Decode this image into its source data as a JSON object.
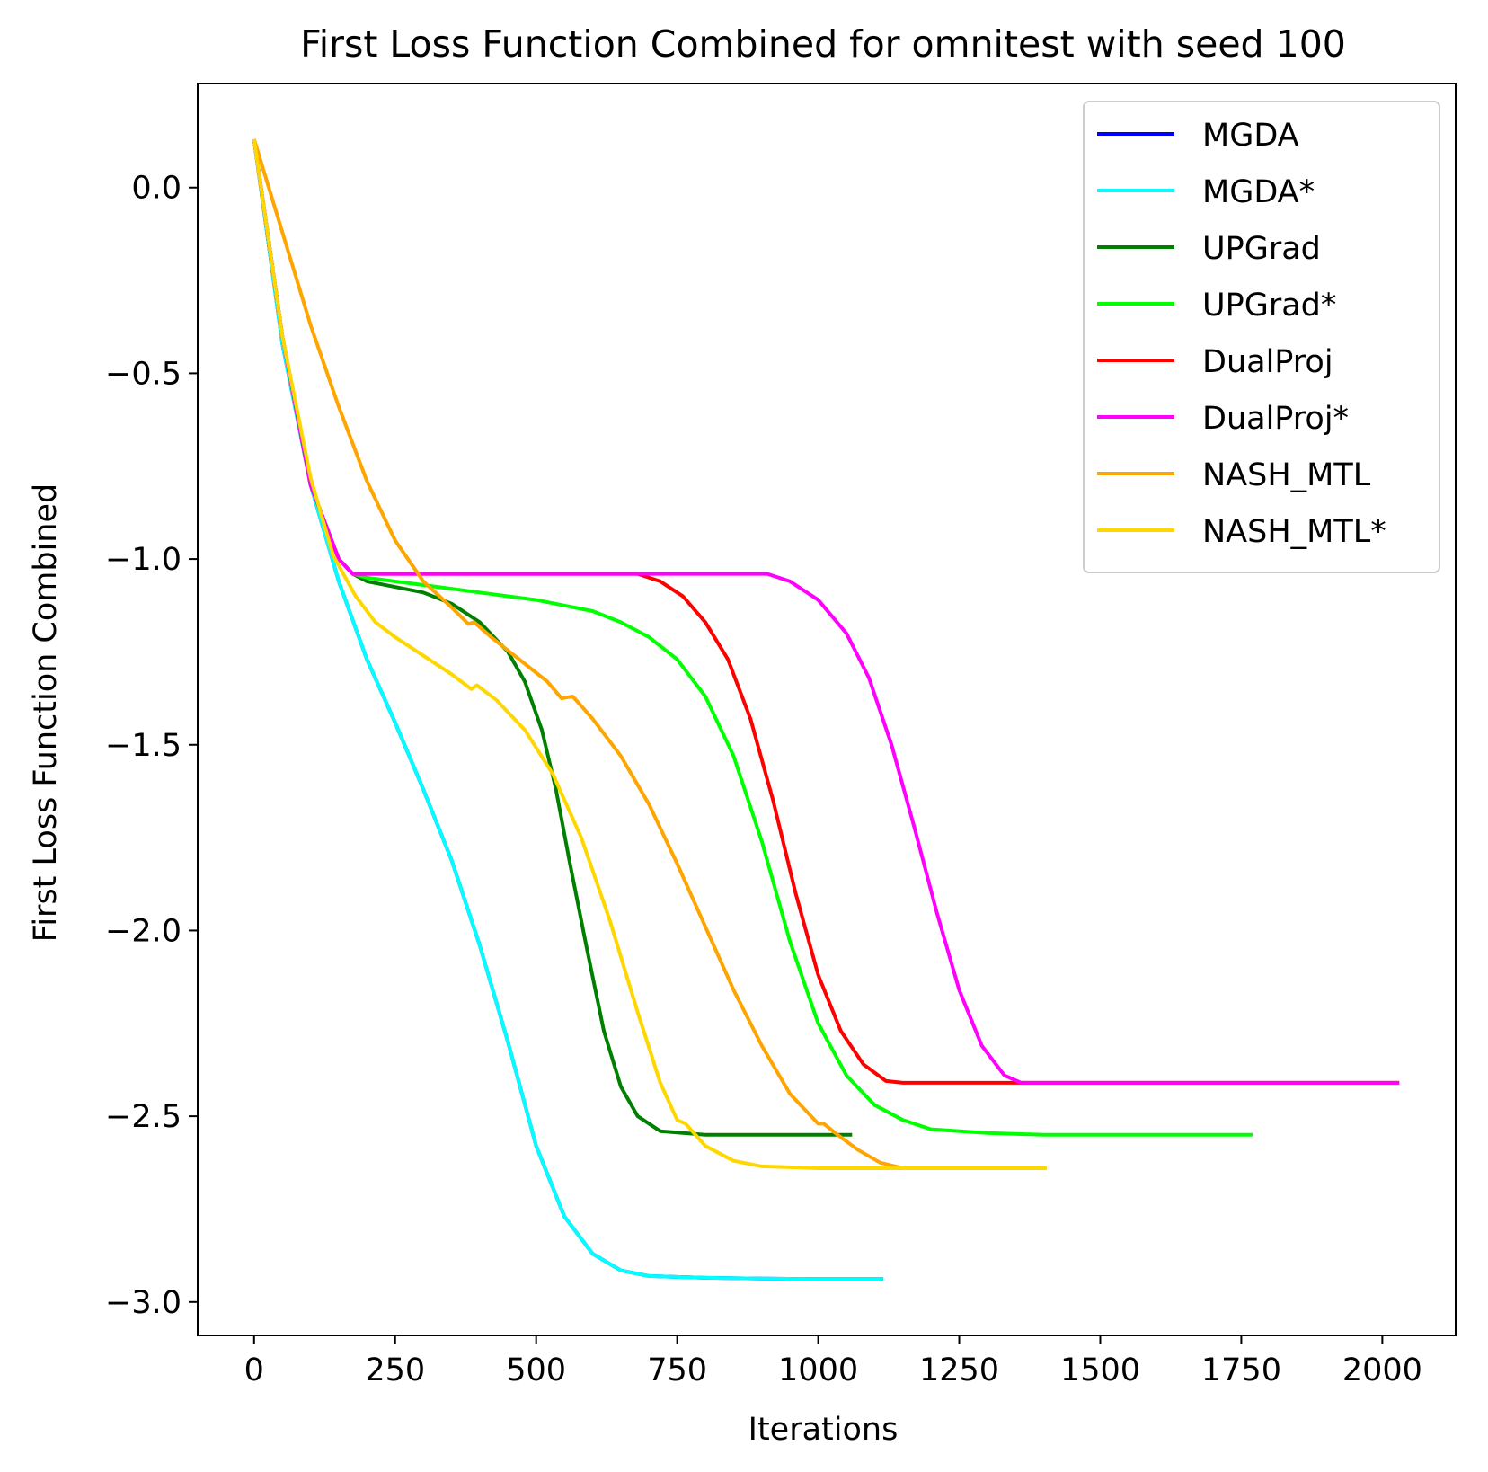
{
  "chart_data": {
    "type": "line",
    "title": "First Loss Function Combined for omnitest with seed 100",
    "xlabel": "Iterations",
    "ylabel": "First Loss Function Combined",
    "xlim": [
      -100,
      2130
    ],
    "ylim": [
      -3.09,
      0.28
    ],
    "xticks": [
      0,
      250,
      500,
      750,
      1000,
      1250,
      1500,
      1750,
      2000
    ],
    "xtick_labels": [
      "0",
      "250",
      "500",
      "750",
      "1000",
      "1250",
      "1500",
      "1750",
      "2000"
    ],
    "yticks": [
      0.0,
      -0.5,
      -1.0,
      -1.5,
      -2.0,
      -2.5,
      -3.0
    ],
    "ytick_labels": [
      "0.0",
      "−0.5",
      "−1.0",
      "−1.5",
      "−2.0",
      "−2.5",
      "−3.0"
    ],
    "grid": false,
    "legend_position": "top-right",
    "series": [
      {
        "name": "MGDA",
        "color": "#0000ff",
        "points": [
          [
            0,
            0.13
          ],
          [
            50,
            -0.42
          ],
          [
            100,
            -0.8
          ],
          [
            150,
            -1.06
          ],
          [
            200,
            -1.27
          ],
          [
            250,
            -1.44
          ],
          [
            300,
            -1.62
          ],
          [
            350,
            -1.81
          ],
          [
            400,
            -2.04
          ],
          [
            450,
            -2.3
          ],
          [
            500,
            -2.58
          ],
          [
            550,
            -2.77
          ],
          [
            600,
            -2.87
          ],
          [
            650,
            -2.915
          ],
          [
            700,
            -2.93
          ],
          [
            800,
            -2.935
          ],
          [
            900,
            -2.937
          ],
          [
            1000,
            -2.938
          ],
          [
            1115,
            -2.938
          ]
        ]
      },
      {
        "name": "MGDA*",
        "color": "#00ffff",
        "points": [
          [
            0,
            0.13
          ],
          [
            50,
            -0.42
          ],
          [
            100,
            -0.8
          ],
          [
            150,
            -1.06
          ],
          [
            200,
            -1.27
          ],
          [
            250,
            -1.44
          ],
          [
            300,
            -1.62
          ],
          [
            350,
            -1.81
          ],
          [
            400,
            -2.04
          ],
          [
            450,
            -2.3
          ],
          [
            500,
            -2.58
          ],
          [
            550,
            -2.77
          ],
          [
            600,
            -2.87
          ],
          [
            650,
            -2.915
          ],
          [
            700,
            -2.93
          ],
          [
            800,
            -2.935
          ],
          [
            900,
            -2.937
          ],
          [
            1000,
            -2.938
          ],
          [
            1115,
            -2.938
          ]
        ]
      },
      {
        "name": "UPGrad",
        "color": "#008000",
        "points": [
          [
            0,
            0.13
          ],
          [
            50,
            -0.4
          ],
          [
            100,
            -0.8
          ],
          [
            150,
            -1.0
          ],
          [
            175,
            -1.04
          ],
          [
            200,
            -1.06
          ],
          [
            300,
            -1.09
          ],
          [
            350,
            -1.12
          ],
          [
            400,
            -1.17
          ],
          [
            450,
            -1.25
          ],
          [
            480,
            -1.33
          ],
          [
            510,
            -1.46
          ],
          [
            535,
            -1.62
          ],
          [
            560,
            -1.82
          ],
          [
            590,
            -2.05
          ],
          [
            620,
            -2.27
          ],
          [
            650,
            -2.42
          ],
          [
            680,
            -2.5
          ],
          [
            720,
            -2.54
          ],
          [
            800,
            -2.55
          ],
          [
            900,
            -2.55
          ],
          [
            1060,
            -2.55
          ]
        ]
      },
      {
        "name": "UPGrad*",
        "color": "#00ff00",
        "points": [
          [
            0,
            0.13
          ],
          [
            50,
            -0.4
          ],
          [
            100,
            -0.8
          ],
          [
            150,
            -1.0
          ],
          [
            175,
            -1.04
          ],
          [
            200,
            -1.05
          ],
          [
            300,
            -1.07
          ],
          [
            400,
            -1.09
          ],
          [
            500,
            -1.11
          ],
          [
            600,
            -1.14
          ],
          [
            650,
            -1.17
          ],
          [
            700,
            -1.21
          ],
          [
            750,
            -1.27
          ],
          [
            800,
            -1.37
          ],
          [
            850,
            -1.53
          ],
          [
            900,
            -1.76
          ],
          [
            950,
            -2.03
          ],
          [
            1000,
            -2.25
          ],
          [
            1050,
            -2.39
          ],
          [
            1100,
            -2.47
          ],
          [
            1150,
            -2.51
          ],
          [
            1200,
            -2.535
          ],
          [
            1300,
            -2.545
          ],
          [
            1400,
            -2.55
          ],
          [
            1600,
            -2.55
          ],
          [
            1770,
            -2.55
          ]
        ]
      },
      {
        "name": "DualProj",
        "color": "#ff0000",
        "points": [
          [
            0,
            0.13
          ],
          [
            50,
            -0.4
          ],
          [
            100,
            -0.8
          ],
          [
            150,
            -1.0
          ],
          [
            175,
            -1.04
          ],
          [
            200,
            -1.04
          ],
          [
            400,
            -1.04
          ],
          [
            600,
            -1.04
          ],
          [
            680,
            -1.04
          ],
          [
            720,
            -1.06
          ],
          [
            760,
            -1.1
          ],
          [
            800,
            -1.17
          ],
          [
            840,
            -1.27
          ],
          [
            880,
            -1.43
          ],
          [
            920,
            -1.65
          ],
          [
            960,
            -1.9
          ],
          [
            1000,
            -2.12
          ],
          [
            1040,
            -2.27
          ],
          [
            1080,
            -2.36
          ],
          [
            1120,
            -2.405
          ],
          [
            1150,
            -2.41
          ],
          [
            1300,
            -2.41
          ],
          [
            1500,
            -2.41
          ],
          [
            1700,
            -2.41
          ],
          [
            2030,
            -2.41
          ]
        ]
      },
      {
        "name": "DualProj*",
        "color": "#ff00ff",
        "points": [
          [
            0,
            0.13
          ],
          [
            50,
            -0.4
          ],
          [
            100,
            -0.8
          ],
          [
            150,
            -1.0
          ],
          [
            175,
            -1.04
          ],
          [
            200,
            -1.04
          ],
          [
            400,
            -1.04
          ],
          [
            600,
            -1.04
          ],
          [
            800,
            -1.04
          ],
          [
            910,
            -1.04
          ],
          [
            950,
            -1.06
          ],
          [
            1000,
            -1.11
          ],
          [
            1050,
            -1.2
          ],
          [
            1090,
            -1.32
          ],
          [
            1130,
            -1.5
          ],
          [
            1170,
            -1.72
          ],
          [
            1210,
            -1.95
          ],
          [
            1250,
            -2.16
          ],
          [
            1290,
            -2.31
          ],
          [
            1330,
            -2.39
          ],
          [
            1360,
            -2.41
          ],
          [
            1500,
            -2.41
          ],
          [
            1700,
            -2.41
          ],
          [
            1900,
            -2.41
          ],
          [
            2030,
            -2.41
          ]
        ]
      },
      {
        "name": "NASH_MTL",
        "color": "#ffa500",
        "points": [
          [
            0,
            0.13
          ],
          [
            50,
            -0.12
          ],
          [
            100,
            -0.37
          ],
          [
            150,
            -0.59
          ],
          [
            200,
            -0.79
          ],
          [
            250,
            -0.95
          ],
          [
            300,
            -1.06
          ],
          [
            350,
            -1.13
          ],
          [
            380,
            -1.175
          ],
          [
            390,
            -1.17
          ],
          [
            420,
            -1.21
          ],
          [
            470,
            -1.27
          ],
          [
            520,
            -1.33
          ],
          [
            545,
            -1.375
          ],
          [
            565,
            -1.37
          ],
          [
            600,
            -1.43
          ],
          [
            650,
            -1.53
          ],
          [
            700,
            -1.66
          ],
          [
            750,
            -1.82
          ],
          [
            800,
            -1.99
          ],
          [
            850,
            -2.16
          ],
          [
            900,
            -2.31
          ],
          [
            950,
            -2.44
          ],
          [
            1000,
            -2.52
          ],
          [
            1010,
            -2.52
          ],
          [
            1030,
            -2.545
          ],
          [
            1070,
            -2.59
          ],
          [
            1110,
            -2.625
          ],
          [
            1150,
            -2.64
          ],
          [
            1250,
            -2.64
          ],
          [
            1405,
            -2.64
          ]
        ]
      },
      {
        "name": "NASH_MTL*",
        "color": "#ffd700",
        "points": [
          [
            0,
            0.13
          ],
          [
            50,
            -0.4
          ],
          [
            100,
            -0.78
          ],
          [
            140,
            -0.99
          ],
          [
            180,
            -1.1
          ],
          [
            215,
            -1.17
          ],
          [
            250,
            -1.21
          ],
          [
            300,
            -1.26
          ],
          [
            350,
            -1.31
          ],
          [
            385,
            -1.35
          ],
          [
            395,
            -1.34
          ],
          [
            430,
            -1.38
          ],
          [
            480,
            -1.46
          ],
          [
            530,
            -1.58
          ],
          [
            580,
            -1.75
          ],
          [
            630,
            -1.97
          ],
          [
            680,
            -2.22
          ],
          [
            720,
            -2.41
          ],
          [
            750,
            -2.51
          ],
          [
            765,
            -2.52
          ],
          [
            800,
            -2.58
          ],
          [
            850,
            -2.62
          ],
          [
            900,
            -2.635
          ],
          [
            1000,
            -2.64
          ],
          [
            1200,
            -2.64
          ],
          [
            1405,
            -2.64
          ]
        ]
      }
    ]
  }
}
